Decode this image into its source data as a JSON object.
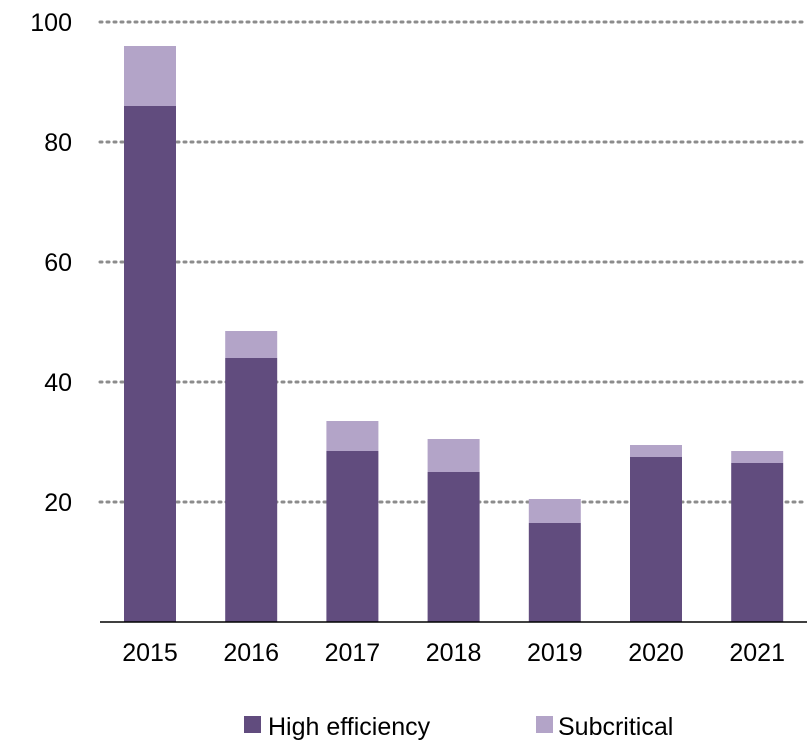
{
  "chart_data": {
    "type": "bar",
    "stacked": true,
    "title": "",
    "xlabel": "",
    "ylabel": "",
    "categories": [
      "2015",
      "2016",
      "2017",
      "2018",
      "2019",
      "2020",
      "2021"
    ],
    "series": [
      {
        "name": "High efficiency",
        "color": "#614c7e",
        "values": [
          86,
          44,
          28.5,
          25,
          16.5,
          27.5,
          26.5
        ]
      },
      {
        "name": "Subcritical",
        "color": "#b3a4c8",
        "values": [
          10,
          4.5,
          5,
          5.5,
          4,
          2,
          2
        ]
      }
    ],
    "ylim": [
      0,
      100
    ],
    "yticks": [
      20,
      40,
      60,
      80,
      100
    ],
    "grid": true,
    "legend_position": "bottom"
  }
}
